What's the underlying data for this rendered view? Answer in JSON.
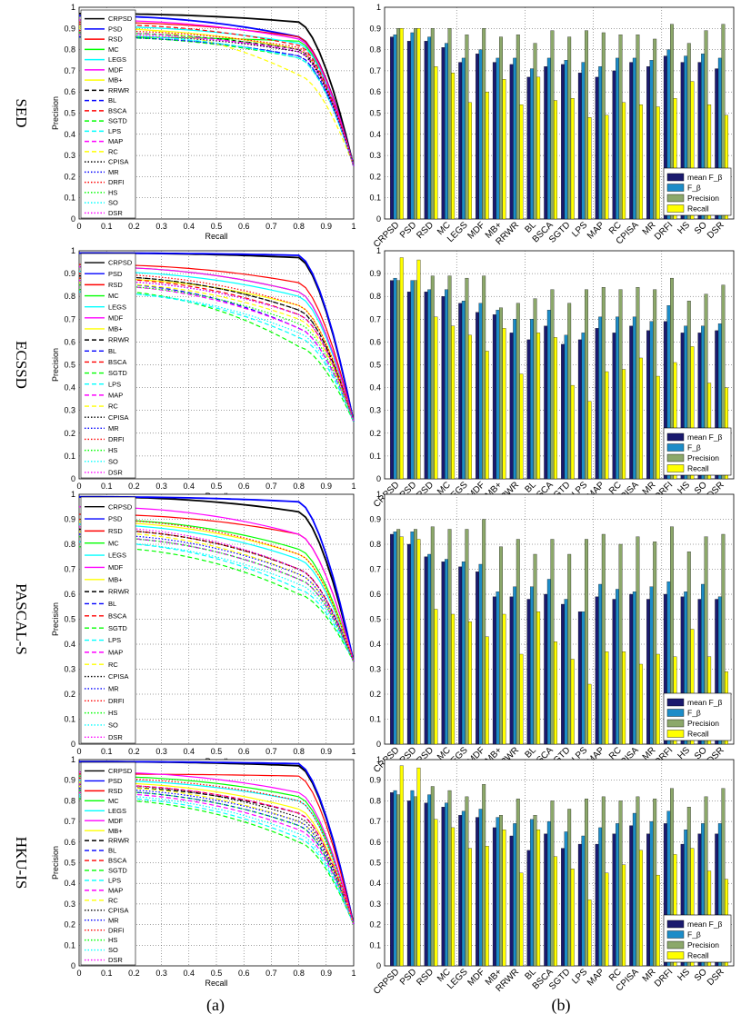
{
  "figure": {
    "sublabels": [
      "(a)",
      "(b)"
    ]
  },
  "chart_data": [
    {
      "type": "line",
      "panel": "pr-curves",
      "datasets": [
        "SED",
        "ECSSD",
        "PASCAL-S",
        "HKU-IS"
      ],
      "xlabel": "Recall",
      "ylabel": "Precision",
      "xlim": [
        0,
        1
      ],
      "ylim": [
        0,
        1
      ],
      "xticks": [
        "0",
        "0.1",
        "0.2",
        "0.3",
        "0.4",
        "0.5",
        "0.6",
        "0.7",
        "0.8",
        "0.9",
        "1"
      ],
      "yticks": [
        "0",
        "0.1",
        "0.2",
        "0.3",
        "0.4",
        "0.5",
        "0.6",
        "0.7",
        "0.8",
        "0.9",
        "1"
      ],
      "grid": true,
      "legend_position": "top-left",
      "methods": [
        {
          "name": "CRPSD",
          "color": "#000000",
          "dash": "solid"
        },
        {
          "name": "PSD",
          "color": "#0000ff",
          "dash": "solid"
        },
        {
          "name": "RSD",
          "color": "#ff0000",
          "dash": "solid"
        },
        {
          "name": "MC",
          "color": "#00ff00",
          "dash": "solid"
        },
        {
          "name": "LEGS",
          "color": "#00ffff",
          "dash": "solid"
        },
        {
          "name": "MDF",
          "color": "#ff00ff",
          "dash": "solid"
        },
        {
          "name": "MB+",
          "color": "#ffff00",
          "dash": "solid"
        },
        {
          "name": "RRWR",
          "color": "#000000",
          "dash": "dashed"
        },
        {
          "name": "BL",
          "color": "#0000ff",
          "dash": "dashed"
        },
        {
          "name": "BSCA",
          "color": "#ff0000",
          "dash": "dashed"
        },
        {
          "name": "SGTD",
          "color": "#00ff00",
          "dash": "dashed"
        },
        {
          "name": "LPS",
          "color": "#00ffff",
          "dash": "dashed"
        },
        {
          "name": "MAP",
          "color": "#ff00ff",
          "dash": "dashed"
        },
        {
          "name": "RC",
          "color": "#ffff00",
          "dash": "dashed"
        },
        {
          "name": "CPISA",
          "color": "#000000",
          "dash": "dotted"
        },
        {
          "name": "MR",
          "color": "#0000ff",
          "dash": "dotted"
        },
        {
          "name": "DRFI",
          "color": "#ff0000",
          "dash": "dotted"
        },
        {
          "name": "HS",
          "color": "#00ff00",
          "dash": "dotted"
        },
        {
          "name": "SO",
          "color": "#00ffff",
          "dash": "dotted"
        },
        {
          "name": "DSR",
          "color": "#ff00ff",
          "dash": "dotted"
        }
      ],
      "curves": {
        "SED": [
          [
            0.97,
            0.93
          ],
          [
            0.96,
            0.86
          ],
          [
            0.93,
            0.86
          ],
          [
            0.86,
            0.84
          ],
          [
            0.91,
            0.83
          ],
          [
            0.94,
            0.85
          ],
          [
            0.9,
            0.8
          ],
          [
            0.88,
            0.8
          ],
          [
            0.86,
            0.77
          ],
          [
            0.92,
            0.82
          ],
          [
            0.86,
            0.76
          ],
          [
            0.87,
            0.76
          ],
          [
            0.88,
            0.79
          ],
          [
            0.91,
            0.68
          ],
          [
            0.87,
            0.79
          ],
          [
            0.86,
            0.77
          ],
          [
            0.89,
            0.81
          ],
          [
            0.88,
            0.8
          ],
          [
            0.87,
            0.76
          ],
          [
            0.87,
            0.8
          ]
        ],
        "ECSSD": [
          [
            0.99,
            0.97
          ],
          [
            0.99,
            0.98
          ],
          [
            0.94,
            0.86
          ],
          [
            0.93,
            0.82
          ],
          [
            0.91,
            0.8
          ],
          [
            0.93,
            0.82
          ],
          [
            0.88,
            0.76
          ],
          [
            0.89,
            0.74
          ],
          [
            0.86,
            0.66
          ],
          [
            0.88,
            0.72
          ],
          [
            0.83,
            0.58
          ],
          [
            0.82,
            0.62
          ],
          [
            0.85,
            0.66
          ],
          [
            0.86,
            0.7
          ],
          [
            0.89,
            0.74
          ],
          [
            0.87,
            0.72
          ],
          [
            0.9,
            0.76
          ],
          [
            0.85,
            0.68
          ],
          [
            0.82,
            0.64
          ],
          [
            0.87,
            0.72
          ]
        ],
        "PASCAL-S": [
          [
            0.99,
            0.93
          ],
          [
            0.99,
            0.97
          ],
          [
            0.92,
            0.84
          ],
          [
            0.9,
            0.78
          ],
          [
            0.88,
            0.74
          ],
          [
            0.95,
            0.84
          ],
          [
            0.89,
            0.76
          ],
          [
            0.86,
            0.7
          ],
          [
            0.83,
            0.66
          ],
          [
            0.86,
            0.7
          ],
          [
            0.79,
            0.6
          ],
          [
            0.81,
            0.62
          ],
          [
            0.83,
            0.66
          ],
          [
            0.85,
            0.68
          ],
          [
            0.86,
            0.7
          ],
          [
            0.84,
            0.68
          ],
          [
            0.9,
            0.76
          ],
          [
            0.83,
            0.66
          ],
          [
            0.81,
            0.64
          ],
          [
            0.87,
            0.7
          ]
        ],
        "HKU-IS": [
          [
            0.99,
            0.97
          ],
          [
            0.99,
            0.98
          ],
          [
            0.93,
            0.92
          ],
          [
            0.92,
            0.82
          ],
          [
            0.9,
            0.8
          ],
          [
            0.94,
            0.84
          ],
          [
            0.89,
            0.76
          ],
          [
            0.87,
            0.74
          ],
          [
            0.85,
            0.68
          ],
          [
            0.88,
            0.74
          ],
          [
            0.81,
            0.6
          ],
          [
            0.82,
            0.62
          ],
          [
            0.84,
            0.66
          ],
          [
            0.87,
            0.7
          ],
          [
            0.88,
            0.72
          ],
          [
            0.86,
            0.7
          ],
          [
            0.91,
            0.8
          ],
          [
            0.85,
            0.68
          ],
          [
            0.83,
            0.64
          ],
          [
            0.88,
            0.74
          ]
        ]
      }
    },
    {
      "type": "bar",
      "panel": "score-bars",
      "datasets": [
        "SED",
        "ECSSD",
        "PASCAL-S",
        "HKU-IS"
      ],
      "categories": [
        "CRPSD",
        "PSD",
        "RSD",
        "MC",
        "LEGS",
        "MDF",
        "MB+",
        "RRWR",
        "BL",
        "BSCA",
        "SGTD",
        "LPS",
        "MAP",
        "RC",
        "CPISA",
        "MR",
        "DRFI",
        "HS",
        "SO",
        "DSR"
      ],
      "ylim": [
        0,
        1
      ],
      "yticks": [
        "0",
        "0.1",
        "0.2",
        "0.3",
        "0.4",
        "0.5",
        "0.6",
        "0.7",
        "0.8",
        "0.9",
        "1"
      ],
      "legend_position": "bottom-right",
      "series_names": [
        "mean F_β",
        "F_β",
        "Precision",
        "Recall"
      ],
      "series_colors": [
        "#1a1a6e",
        "#1c8cc8",
        "#8ca86a",
        "#ffff00"
      ],
      "values": {
        "SED": {
          "mean": [
            0.86,
            0.84,
            0.84,
            0.81,
            0.74,
            0.78,
            0.74,
            0.73,
            0.67,
            0.72,
            0.73,
            0.69,
            0.67,
            0.7,
            0.74,
            0.72,
            0.77,
            0.74,
            0.74,
            0.71
          ],
          "fbeta": [
            0.87,
            0.88,
            0.86,
            0.83,
            0.76,
            0.8,
            0.76,
            0.76,
            0.71,
            0.76,
            0.75,
            0.74,
            0.72,
            0.76,
            0.76,
            0.75,
            0.8,
            0.77,
            0.78,
            0.76
          ],
          "precision": [
            0.9,
            0.9,
            0.9,
            0.9,
            0.87,
            0.9,
            0.86,
            0.87,
            0.83,
            0.89,
            0.86,
            0.89,
            0.88,
            0.87,
            0.87,
            0.85,
            0.92,
            0.83,
            0.89,
            0.92
          ],
          "recall": [
            0.9,
            0.9,
            0.72,
            0.69,
            0.55,
            0.6,
            0.66,
            0.54,
            0.67,
            0.56,
            0.57,
            0.48,
            0.49,
            0.55,
            0.54,
            0.53,
            0.57,
            0.65,
            0.54,
            0.49
          ]
        },
        "ECSSD": {
          "mean": [
            0.87,
            0.82,
            0.82,
            0.8,
            0.77,
            0.73,
            0.72,
            0.64,
            0.61,
            0.67,
            0.59,
            0.61,
            0.66,
            0.64,
            0.67,
            0.65,
            0.69,
            0.64,
            0.64,
            0.65
          ],
          "fbeta": [
            0.88,
            0.87,
            0.83,
            0.83,
            0.78,
            0.77,
            0.74,
            0.7,
            0.7,
            0.74,
            0.63,
            0.64,
            0.71,
            0.71,
            0.71,
            0.69,
            0.76,
            0.67,
            0.67,
            0.68
          ],
          "precision": [
            0.87,
            0.87,
            0.89,
            0.89,
            0.88,
            0.89,
            0.75,
            0.77,
            0.79,
            0.83,
            0.77,
            0.83,
            0.84,
            0.83,
            0.84,
            0.83,
            0.88,
            0.78,
            0.81,
            0.85
          ],
          "recall": [
            0.97,
            0.96,
            0.71,
            0.67,
            0.63,
            0.56,
            0.66,
            0.46,
            0.64,
            0.62,
            0.41,
            0.34,
            0.47,
            0.48,
            0.53,
            0.45,
            0.51,
            0.58,
            0.42,
            0.4
          ]
        },
        "PASCAL-S": {
          "mean": [
            0.84,
            0.8,
            0.75,
            0.73,
            0.71,
            0.69,
            0.59,
            0.59,
            0.58,
            0.6,
            0.56,
            0.53,
            0.59,
            0.58,
            0.6,
            0.58,
            0.6,
            0.59,
            0.58,
            0.58
          ],
          "fbeta": [
            0.85,
            0.85,
            0.76,
            0.74,
            0.73,
            0.72,
            0.61,
            0.63,
            0.63,
            0.66,
            0.58,
            0.53,
            0.64,
            0.62,
            0.61,
            0.63,
            0.65,
            0.61,
            0.64,
            0.59
          ],
          "precision": [
            0.86,
            0.86,
            0.87,
            0.86,
            0.86,
            0.9,
            0.79,
            0.82,
            0.76,
            0.82,
            0.76,
            0.82,
            0.84,
            0.8,
            0.83,
            0.81,
            0.87,
            0.77,
            0.83,
            0.84
          ],
          "recall": [
            0.83,
            0.82,
            0.54,
            0.52,
            0.49,
            0.43,
            0.52,
            0.36,
            0.53,
            0.41,
            0.34,
            0.24,
            0.37,
            0.37,
            0.32,
            0.36,
            0.35,
            0.46,
            0.35,
            0.29
          ]
        },
        "HKU-IS": {
          "mean": [
            0.84,
            0.8,
            0.79,
            0.77,
            0.73,
            0.72,
            0.67,
            0.63,
            0.56,
            0.64,
            0.57,
            0.59,
            0.59,
            0.64,
            0.68,
            0.64,
            0.69,
            0.59,
            0.64,
            0.64
          ],
          "fbeta": [
            0.85,
            0.85,
            0.83,
            0.79,
            0.75,
            0.76,
            0.72,
            0.69,
            0.71,
            0.7,
            0.65,
            0.63,
            0.67,
            0.69,
            0.74,
            0.7,
            0.75,
            0.66,
            0.69,
            0.69
          ],
          "precision": [
            0.83,
            0.82,
            0.87,
            0.85,
            0.82,
            0.88,
            0.73,
            0.81,
            0.73,
            0.8,
            0.76,
            0.81,
            0.82,
            0.8,
            0.82,
            0.81,
            0.86,
            0.77,
            0.82,
            0.86
          ],
          "recall": [
            0.97,
            0.96,
            0.71,
            0.67,
            0.57,
            0.58,
            0.66,
            0.45,
            0.66,
            0.53,
            0.47,
            0.32,
            0.45,
            0.49,
            0.56,
            0.44,
            0.54,
            0.57,
            0.46,
            0.42
          ]
        }
      }
    }
  ]
}
